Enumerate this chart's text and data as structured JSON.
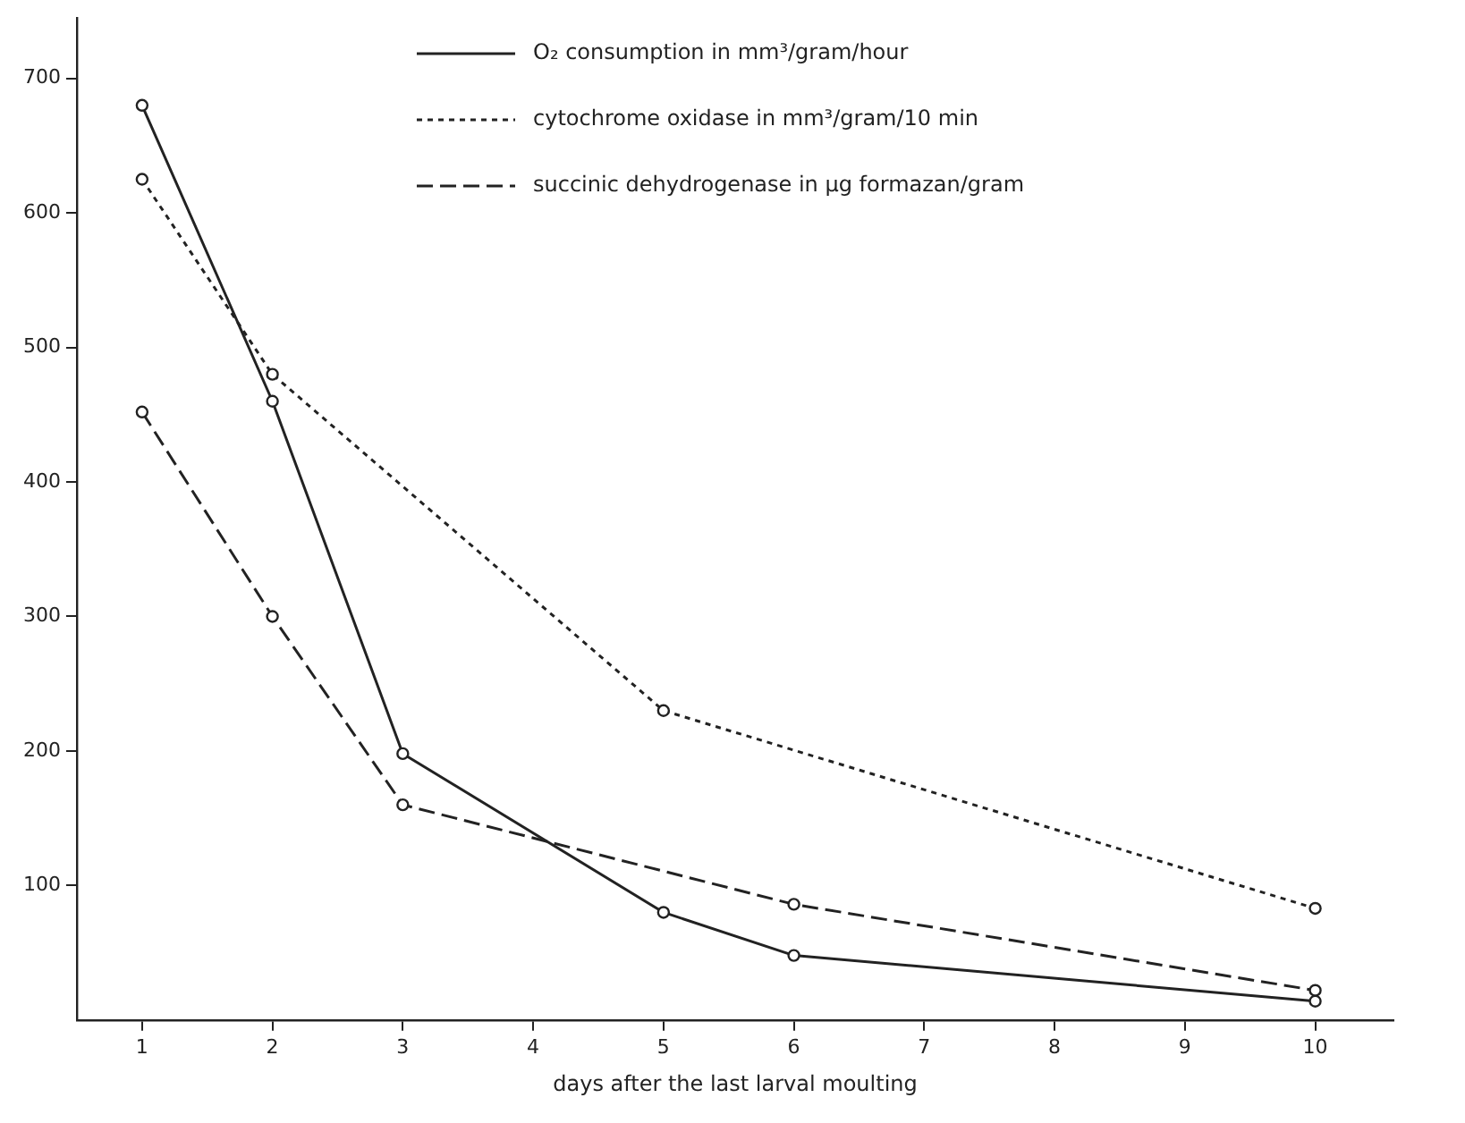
{
  "chart_data": {
    "type": "line",
    "xlabel": "days after the last larval moulting",
    "xlim": [
      0.5,
      10.6
    ],
    "xticks": [
      1,
      2,
      3,
      4,
      5,
      6,
      7,
      8,
      9,
      10
    ],
    "ylim": [
      0,
      745
    ],
    "yticks": [
      100,
      200,
      300,
      400,
      500,
      600,
      700
    ],
    "grid": false,
    "legend": "top right",
    "marker": "circle",
    "series": [
      {
        "name": "O₂ consumption in mm³/gram/hour",
        "color": "#222222",
        "line_style": "solid",
        "x": [
          1,
          2,
          3,
          5,
          6,
          10
        ],
        "values": [
          680,
          460,
          198,
          80,
          48,
          14
        ]
      },
      {
        "name": "cytochrome oxidase in mm³/gram/10 min",
        "color": "#222222",
        "line_style": "dotted",
        "x": [
          1,
          2,
          5,
          10
        ],
        "values": [
          625,
          480,
          230,
          83
        ]
      },
      {
        "name": "succinic dehydrogenase in µg formazan/gram",
        "color": "#222222",
        "line_style": "dashed",
        "x": [
          1,
          2,
          3,
          6,
          10
        ],
        "values": [
          452,
          300,
          160,
          86,
          22
        ]
      }
    ]
  }
}
